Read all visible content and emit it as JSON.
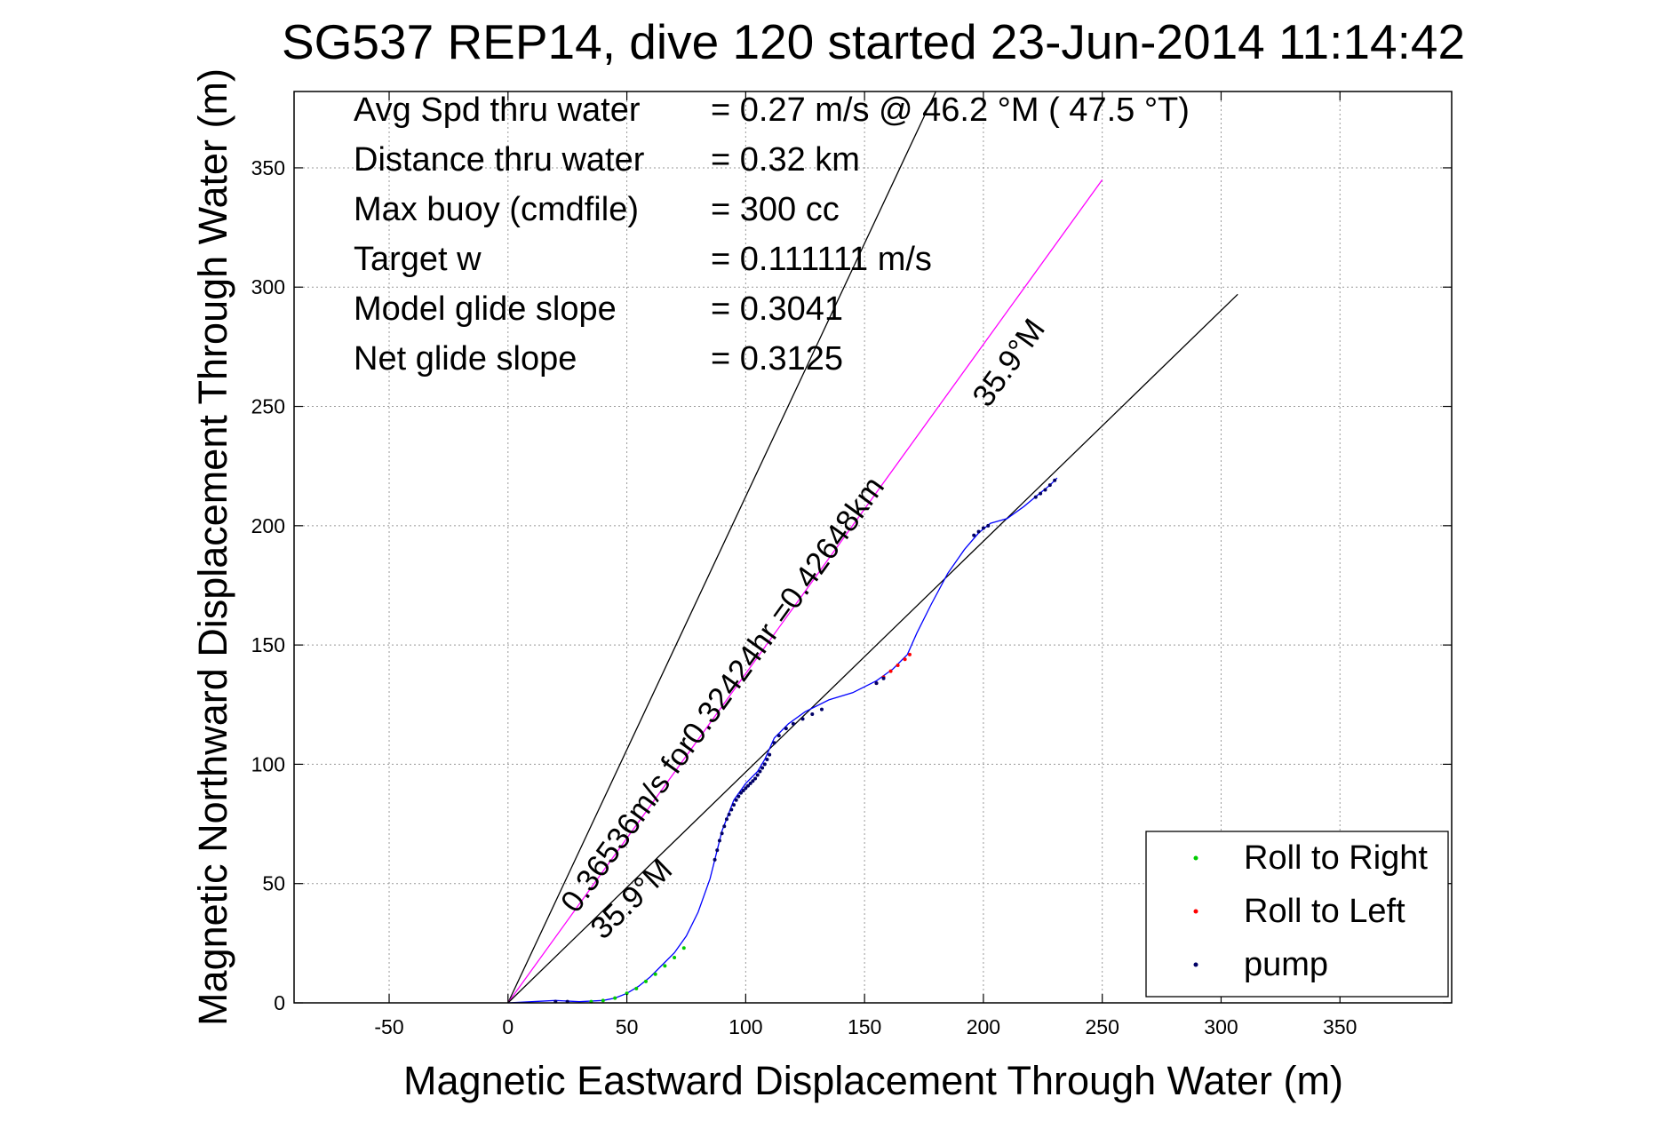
{
  "chart_data": {
    "type": "scatter",
    "title": "SG537 REP14, dive 120 started 23-Jun-2014 11:14:42",
    "xlabel": "Magnetic Eastward Displacement Through Water (m)",
    "ylabel": "Magnetic Northward Displacement Through Water (m)",
    "xlim": [
      -90,
      397
    ],
    "ylim": [
      0,
      382
    ],
    "xticks": [
      -50,
      0,
      50,
      100,
      150,
      200,
      250,
      300,
      350
    ],
    "yticks": [
      0,
      50,
      100,
      150,
      200,
      250,
      300,
      350
    ],
    "grid": true,
    "legend_position": "bottom-right",
    "legend": [
      {
        "label": "Roll to Right",
        "color": "#00cc00"
      },
      {
        "label": "Roll to Left",
        "color": "#ff0000"
      },
      {
        "label": "pump",
        "color": "#000066"
      }
    ],
    "stats": [
      {
        "label": "Avg Spd thru water",
        "value": "=  0.27 m/s @  46.2 °M ( 47.5 °T)"
      },
      {
        "label": "Distance thru water",
        "value": "=  0.32 km"
      },
      {
        "label": "Max buoy (cmdfile)",
        "value": "= 300 cc"
      },
      {
        "label": "Target w",
        "value": "= 0.111111 m/s"
      },
      {
        "label": "Model glide slope",
        "value": "= 0.3041"
      },
      {
        "label": "Net glide slope",
        "value": "= 0.3125"
      }
    ],
    "annotations": {
      "course_line_text": "0.36536m/s for0.32424hr =0.42648km",
      "bearing_upper": "35.9°M",
      "bearing_lower": "35.9°M"
    },
    "reference_lines": [
      {
        "name": "upper-bound",
        "x": [
          0,
          180
        ],
        "y": [
          0,
          382
        ],
        "color": "#000000"
      },
      {
        "name": "course",
        "x": [
          0,
          250
        ],
        "y": [
          0,
          345
        ],
        "color": "#ff00ff"
      },
      {
        "name": "lower-bound",
        "x": [
          0,
          307
        ],
        "y": [
          0,
          297
        ],
        "color": "#000000"
      }
    ],
    "track": {
      "color": "#0000ff",
      "x": [
        0,
        10,
        20,
        30,
        40,
        45,
        50,
        55,
        60,
        65,
        70,
        75,
        80,
        85,
        87,
        90,
        95,
        100,
        105,
        108,
        112,
        118,
        125,
        135,
        145,
        155,
        162,
        168,
        172,
        178,
        185,
        192,
        198,
        203,
        210,
        217,
        223,
        228,
        231
      ],
      "y": [
        0,
        0.5,
        1,
        0.5,
        1,
        2,
        4,
        7,
        11,
        16,
        21,
        28,
        38,
        52,
        60,
        72,
        85,
        92,
        97,
        102,
        111,
        117,
        122,
        127,
        130,
        135,
        140,
        146,
        155,
        167,
        180,
        190,
        197,
        201,
        203,
        208,
        213,
        217,
        220
      ]
    },
    "roll_right": {
      "x": [
        35,
        40,
        45,
        50,
        54,
        58,
        62,
        66,
        70,
        74
      ],
      "y": [
        0.5,
        1,
        2,
        4,
        6,
        9,
        12,
        15.5,
        19,
        23
      ]
    },
    "roll_left": {
      "x": [
        155,
        158,
        161,
        164,
        167,
        169
      ],
      "y": [
        134,
        136.5,
        139,
        141.5,
        144,
        146
      ]
    },
    "pump": {
      "x": [
        20,
        25,
        87,
        88,
        89,
        90,
        91,
        92,
        93,
        94,
        95,
        96,
        97,
        98,
        99,
        100,
        101,
        102,
        103,
        104,
        105,
        106,
        107,
        108,
        109,
        110,
        112,
        114,
        117,
        120,
        124,
        128,
        132,
        155,
        158,
        196,
        198,
        200,
        202,
        222,
        224,
        226,
        228,
        230
      ],
      "y": [
        0.5,
        0.5,
        60,
        64,
        68,
        71,
        74,
        77,
        79,
        81,
        83,
        85,
        86.5,
        88,
        89,
        90,
        91,
        92,
        93,
        94,
        95.5,
        97,
        98.5,
        100,
        102,
        104,
        109,
        112,
        115,
        117,
        119,
        121,
        123,
        134,
        136,
        196,
        197.5,
        199,
        200,
        212,
        213.5,
        215,
        217,
        219
      ]
    }
  }
}
